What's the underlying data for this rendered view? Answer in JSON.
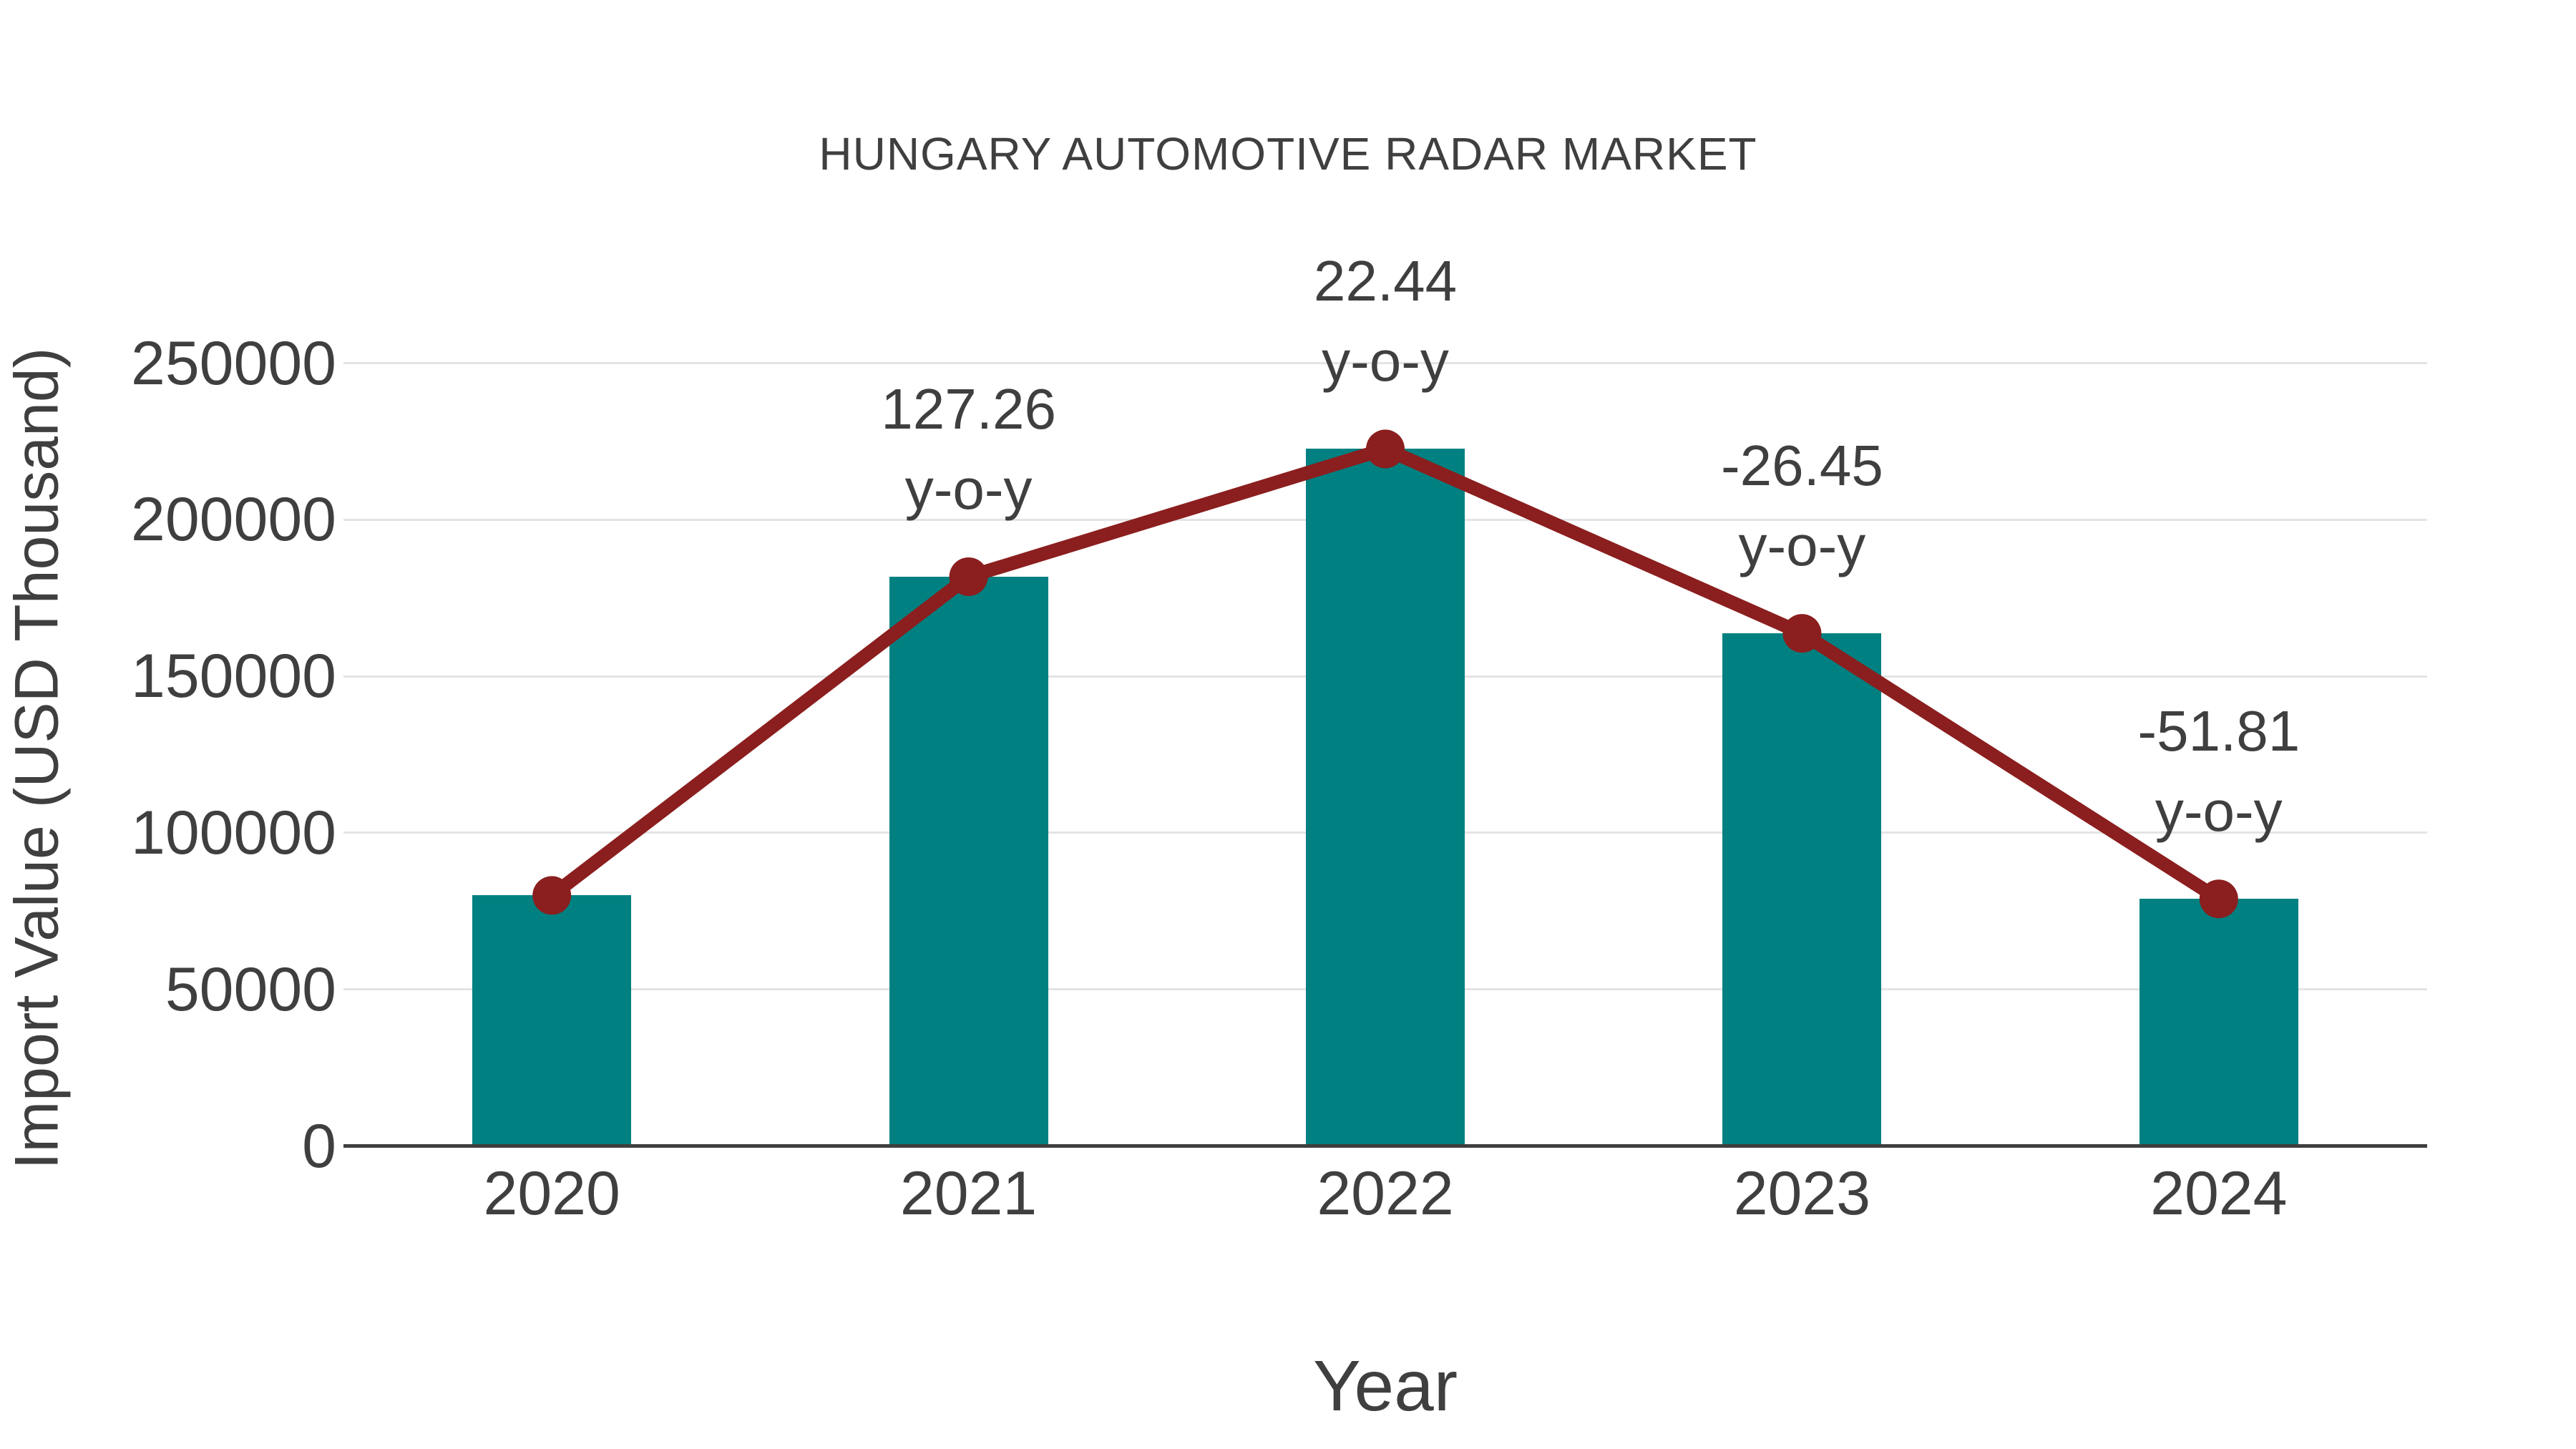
{
  "title": "HUNGARY AUTOMOTIVE RADAR MARKET",
  "colors": {
    "bar": "#008080",
    "line": "#8b1e1e",
    "marker": "#8b1e1e",
    "grid": "#e4e4e4",
    "axis": "#3f3f3f",
    "text": "#3f3f3f"
  },
  "chart_data": {
    "type": "bar",
    "title": "HUNGARY AUTOMOTIVE RADAR MARKET",
    "xlabel": "Year",
    "ylabel": "Import Value (USD Thousand)",
    "categories": [
      "2020",
      "2021",
      "2022",
      "2023",
      "2024"
    ],
    "values": [
      80000,
      181800,
      222600,
      163700,
      78900
    ],
    "line_overlay": {
      "name": "y-o-y trend line",
      "follows": "values",
      "color": "#8b1e1e"
    },
    "annotations": [
      {
        "category": "2021",
        "text": "127.26",
        "subtext": "y-o-y"
      },
      {
        "category": "2022",
        "text": "22.44",
        "subtext": "y-o-y"
      },
      {
        "category": "2023",
        "text": "-26.45",
        "subtext": "y-o-y"
      },
      {
        "category": "2024",
        "text": "-51.81",
        "subtext": "y-o-y"
      }
    ],
    "y_ticks": [
      0,
      50000,
      100000,
      150000,
      200000,
      250000
    ],
    "ylim": [
      0,
      262000
    ],
    "grid": "horizontal",
    "legend": "none"
  }
}
